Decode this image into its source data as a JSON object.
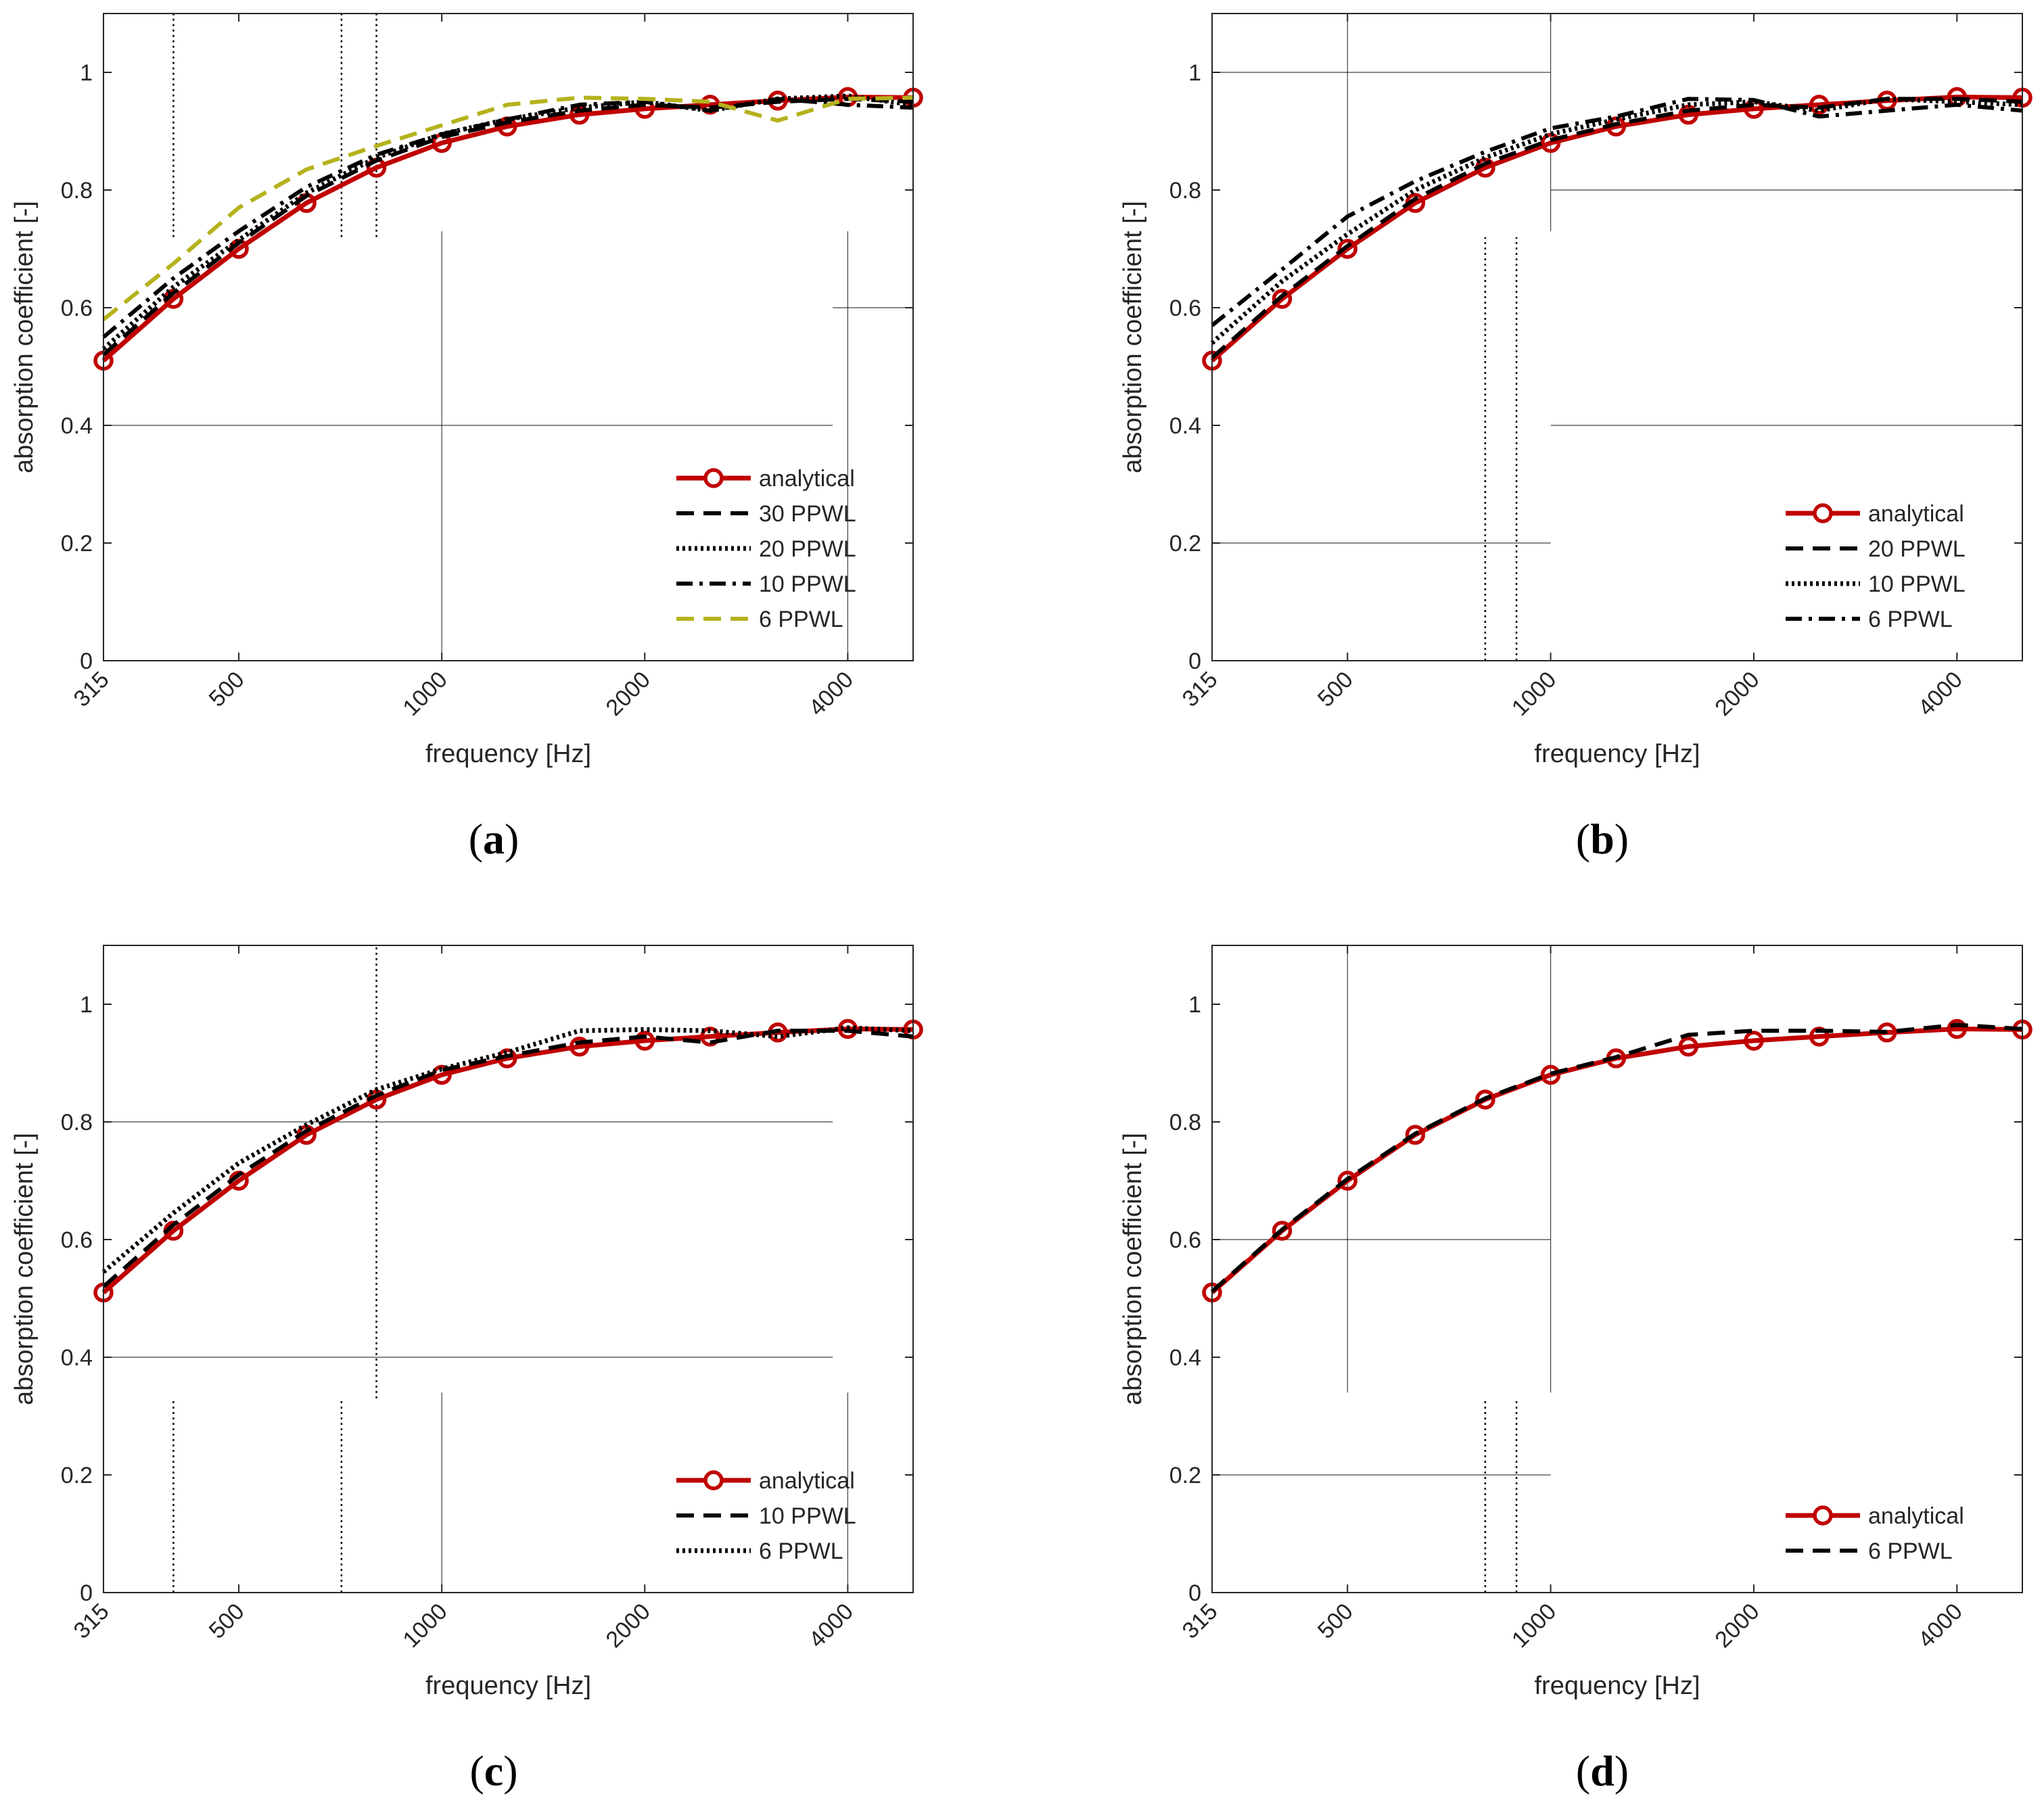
{
  "figure": {
    "panels_meta": {
      "a": {
        "label_open": "(",
        "label_letter": "a",
        "label_close": ")"
      },
      "b": {
        "label_open": "(",
        "label_letter": "b",
        "label_close": ")"
      },
      "c": {
        "label_open": "(",
        "label_letter": "c",
        "label_close": ")"
      },
      "d": {
        "label_open": "(",
        "label_letter": "d",
        "label_close": ")"
      }
    }
  },
  "colors": {
    "analytical": "#c00000",
    "black": "#000000",
    "ppwl6_yellow": "#b5b21e",
    "grid": "#000000",
    "axis": "#262626"
  },
  "chart_data": [
    {
      "id": "a",
      "type": "line",
      "xscale": "log",
      "xlabel": "frequency [Hz]",
      "ylabel": "absorption coefficient [-]",
      "xlim": [
        315,
        5000
      ],
      "ylim": [
        0,
        1.1
      ],
      "xticks": [
        315,
        500,
        1000,
        2000,
        4000
      ],
      "xtick_labels": [
        "315",
        "500",
        "1000",
        "2000",
        "4000"
      ],
      "yticks": [
        0,
        0.2,
        0.4,
        0.6,
        0.8,
        1
      ],
      "ytick_labels": [
        "0",
        "0.2",
        "0.4",
        "0.6",
        "0.8",
        "1"
      ],
      "legend_position": "bottom-right",
      "x": [
        315,
        400,
        500,
        630,
        800,
        1000,
        1250,
        1600,
        2000,
        2500,
        3150,
        4000,
        5000
      ],
      "series": [
        {
          "name": "analytical",
          "style": "solid-marker",
          "color": "#c00000",
          "values": [
            0.51,
            0.615,
            0.7,
            0.778,
            0.838,
            0.88,
            0.908,
            0.928,
            0.938,
            0.945,
            0.952,
            0.958,
            0.957
          ]
        },
        {
          "name": "30 PPWL",
          "style": "dashed",
          "color": "#000000",
          "values": [
            0.52,
            0.625,
            0.71,
            0.79,
            0.85,
            0.89,
            0.915,
            0.935,
            0.945,
            0.94,
            0.95,
            0.955,
            0.95
          ]
        },
        {
          "name": "20 PPWL",
          "style": "dotted",
          "color": "#000000",
          "values": [
            0.53,
            0.635,
            0.715,
            0.795,
            0.855,
            0.895,
            0.92,
            0.94,
            0.95,
            0.935,
            0.955,
            0.96,
            0.945
          ]
        },
        {
          "name": "10 PPWL",
          "style": "dashdot",
          "color": "#000000",
          "values": [
            0.55,
            0.65,
            0.73,
            0.805,
            0.86,
            0.895,
            0.92,
            0.945,
            0.95,
            0.935,
            0.955,
            0.945,
            0.94
          ]
        },
        {
          "name": "6 PPWL",
          "style": "dashed",
          "color": "#b5b21e",
          "values": [
            0.58,
            0.675,
            0.77,
            0.835,
            0.875,
            0.91,
            0.945,
            0.957,
            0.955,
            0.95,
            0.918,
            0.955,
            0.957
          ]
        }
      ],
      "grid": {
        "h": [
          {
            "y": 0.4,
            "x1": 315,
            "x2": 3800
          },
          {
            "y": 0.6,
            "x1": 3800,
            "x2": 5000
          }
        ],
        "v": [
          {
            "x": 400,
            "y1": 0.72,
            "y2": 1.1,
            "dotted": true
          },
          {
            "x": 710,
            "y1": 0.72,
            "y2": 1.1,
            "dotted": true
          },
          {
            "x": 800,
            "y1": 0.72,
            "y2": 1.1,
            "dotted": true
          },
          {
            "x": 1000,
            "y1": 0,
            "y2": 0.73,
            "dotted": false
          },
          {
            "x": 4000,
            "y1": 0,
            "y2": 0.73,
            "dotted": false
          }
        ]
      }
    },
    {
      "id": "b",
      "type": "line",
      "xscale": "log",
      "xlabel": "frequency [Hz]",
      "ylabel": "absorption coefficient [-]",
      "xlim": [
        315,
        5000
      ],
      "ylim": [
        0,
        1.1
      ],
      "xticks": [
        315,
        500,
        1000,
        2000,
        4000
      ],
      "xtick_labels": [
        "315",
        "500",
        "1000",
        "2000",
        "4000"
      ],
      "yticks": [
        0,
        0.2,
        0.4,
        0.6,
        0.8,
        1
      ],
      "ytick_labels": [
        "0",
        "0.2",
        "0.4",
        "0.6",
        "0.8",
        "1"
      ],
      "legend_position": "bottom-right",
      "x": [
        315,
        400,
        500,
        630,
        800,
        1000,
        1250,
        1600,
        2000,
        2500,
        3150,
        4000,
        5000
      ],
      "series": [
        {
          "name": "analytical",
          "style": "solid-marker",
          "color": "#c00000",
          "values": [
            0.51,
            0.615,
            0.7,
            0.778,
            0.838,
            0.88,
            0.908,
            0.928,
            0.938,
            0.945,
            0.952,
            0.958,
            0.957
          ]
        },
        {
          "name": "20 PPWL",
          "style": "dashed",
          "color": "#000000",
          "values": [
            0.515,
            0.62,
            0.705,
            0.785,
            0.845,
            0.885,
            0.912,
            0.935,
            0.945,
            0.94,
            0.955,
            0.955,
            0.95
          ]
        },
        {
          "name": "10 PPWL",
          "style": "dotted",
          "color": "#000000",
          "values": [
            0.54,
            0.645,
            0.725,
            0.8,
            0.855,
            0.895,
            0.92,
            0.945,
            0.95,
            0.935,
            0.955,
            0.95,
            0.945
          ]
        },
        {
          "name": "6 PPWL",
          "style": "dashdot",
          "color": "#000000",
          "values": [
            0.57,
            0.665,
            0.755,
            0.815,
            0.865,
            0.905,
            0.925,
            0.955,
            0.953,
            0.925,
            0.935,
            0.945,
            0.935
          ]
        }
      ],
      "grid": {
        "h": [
          {
            "y": 1.0,
            "x1": 315,
            "x2": 1000
          },
          {
            "y": 0.8,
            "x1": 1000,
            "x2": 5000
          },
          {
            "y": 0.4,
            "x1": 1000,
            "x2": 5000
          },
          {
            "y": 0.2,
            "x1": 315,
            "x2": 1000
          }
        ],
        "v": [
          {
            "x": 500,
            "y1": 0.73,
            "y2": 1.1,
            "dotted": false
          },
          {
            "x": 1000,
            "y1": 0.73,
            "y2": 1.1,
            "dotted": false
          },
          {
            "x": 800,
            "y1": 0,
            "y2": 0.72,
            "dotted": true
          },
          {
            "x": 890,
            "y1": 0,
            "y2": 0.72,
            "dotted": true
          }
        ]
      }
    },
    {
      "id": "c",
      "type": "line",
      "xscale": "log",
      "xlabel": "frequency [Hz]",
      "ylabel": "absorption coefficient [-]",
      "xlim": [
        315,
        5000
      ],
      "ylim": [
        0,
        1.1
      ],
      "xticks": [
        315,
        500,
        1000,
        2000,
        4000
      ],
      "xtick_labels": [
        "315",
        "500",
        "1000",
        "2000",
        "4000"
      ],
      "yticks": [
        0,
        0.2,
        0.4,
        0.6,
        0.8,
        1
      ],
      "ytick_labels": [
        "0",
        "0.2",
        "0.4",
        "0.6",
        "0.8",
        "1"
      ],
      "legend_position": "bottom-right",
      "x": [
        315,
        400,
        500,
        630,
        800,
        1000,
        1250,
        1600,
        2000,
        2500,
        3150,
        4000,
        5000
      ],
      "series": [
        {
          "name": "analytical",
          "style": "solid-marker",
          "color": "#c00000",
          "values": [
            0.51,
            0.615,
            0.7,
            0.778,
            0.838,
            0.88,
            0.908,
            0.928,
            0.938,
            0.945,
            0.952,
            0.958,
            0.957
          ]
        },
        {
          "name": "10 PPWL",
          "style": "dashed",
          "color": "#000000",
          "values": [
            0.52,
            0.625,
            0.71,
            0.785,
            0.845,
            0.888,
            0.912,
            0.935,
            0.945,
            0.935,
            0.955,
            0.955,
            0.945
          ]
        },
        {
          "name": "6 PPWL",
          "style": "dotted",
          "color": "#000000",
          "values": [
            0.545,
            0.645,
            0.73,
            0.795,
            0.855,
            0.89,
            0.918,
            0.955,
            0.957,
            0.955,
            0.945,
            0.96,
            0.955
          ]
        }
      ],
      "grid": {
        "h": [
          {
            "y": 0.8,
            "x1": 315,
            "x2": 3800
          },
          {
            "y": 0.4,
            "x1": 315,
            "x2": 3800
          }
        ],
        "v": [
          {
            "x": 800,
            "y1": 0.33,
            "y2": 1.1,
            "dotted": true
          },
          {
            "x": 400,
            "y1": 0,
            "y2": 0.33,
            "dotted": true
          },
          {
            "x": 710,
            "y1": 0,
            "y2": 0.33,
            "dotted": true
          },
          {
            "x": 1000,
            "y1": 0,
            "y2": 0.34,
            "dotted": false
          },
          {
            "x": 4000,
            "y1": 0,
            "y2": 0.34,
            "dotted": false
          }
        ]
      }
    },
    {
      "id": "d",
      "type": "line",
      "xscale": "log",
      "xlabel": "frequency [Hz]",
      "ylabel": "absorption coefficient [-]",
      "xlim": [
        315,
        5000
      ],
      "ylim": [
        0,
        1.1
      ],
      "xticks": [
        315,
        500,
        1000,
        2000,
        4000
      ],
      "xtick_labels": [
        "315",
        "500",
        "1000",
        "2000",
        "4000"
      ],
      "yticks": [
        0,
        0.2,
        0.4,
        0.6,
        0.8,
        1
      ],
      "ytick_labels": [
        "0",
        "0.2",
        "0.4",
        "0.6",
        "0.8",
        "1"
      ],
      "legend_position": "bottom-right",
      "x": [
        315,
        400,
        500,
        630,
        800,
        1000,
        1250,
        1600,
        2000,
        2500,
        3150,
        4000,
        5000
      ],
      "series": [
        {
          "name": "analytical",
          "style": "solid-marker",
          "color": "#c00000",
          "values": [
            0.51,
            0.615,
            0.7,
            0.778,
            0.838,
            0.88,
            0.908,
            0.928,
            0.938,
            0.945,
            0.952,
            0.958,
            0.957
          ]
        },
        {
          "name": "6 PPWL",
          "style": "dashed",
          "color": "#000000",
          "values": [
            0.512,
            0.617,
            0.703,
            0.78,
            0.84,
            0.882,
            0.91,
            0.948,
            0.955,
            0.955,
            0.953,
            0.965,
            0.958
          ]
        }
      ],
      "grid": {
        "h": [
          {
            "y": 0.6,
            "x1": 315,
            "x2": 1000
          },
          {
            "y": 0.2,
            "x1": 315,
            "x2": 1000
          }
        ],
        "v": [
          {
            "x": 500,
            "y1": 0.34,
            "y2": 1.1,
            "dotted": false
          },
          {
            "x": 1000,
            "y1": 0.34,
            "y2": 1.1,
            "dotted": false
          },
          {
            "x": 800,
            "y1": 0,
            "y2": 0.33,
            "dotted": true
          },
          {
            "x": 890,
            "y1": 0,
            "y2": 0.33,
            "dotted": true
          }
        ]
      }
    }
  ]
}
